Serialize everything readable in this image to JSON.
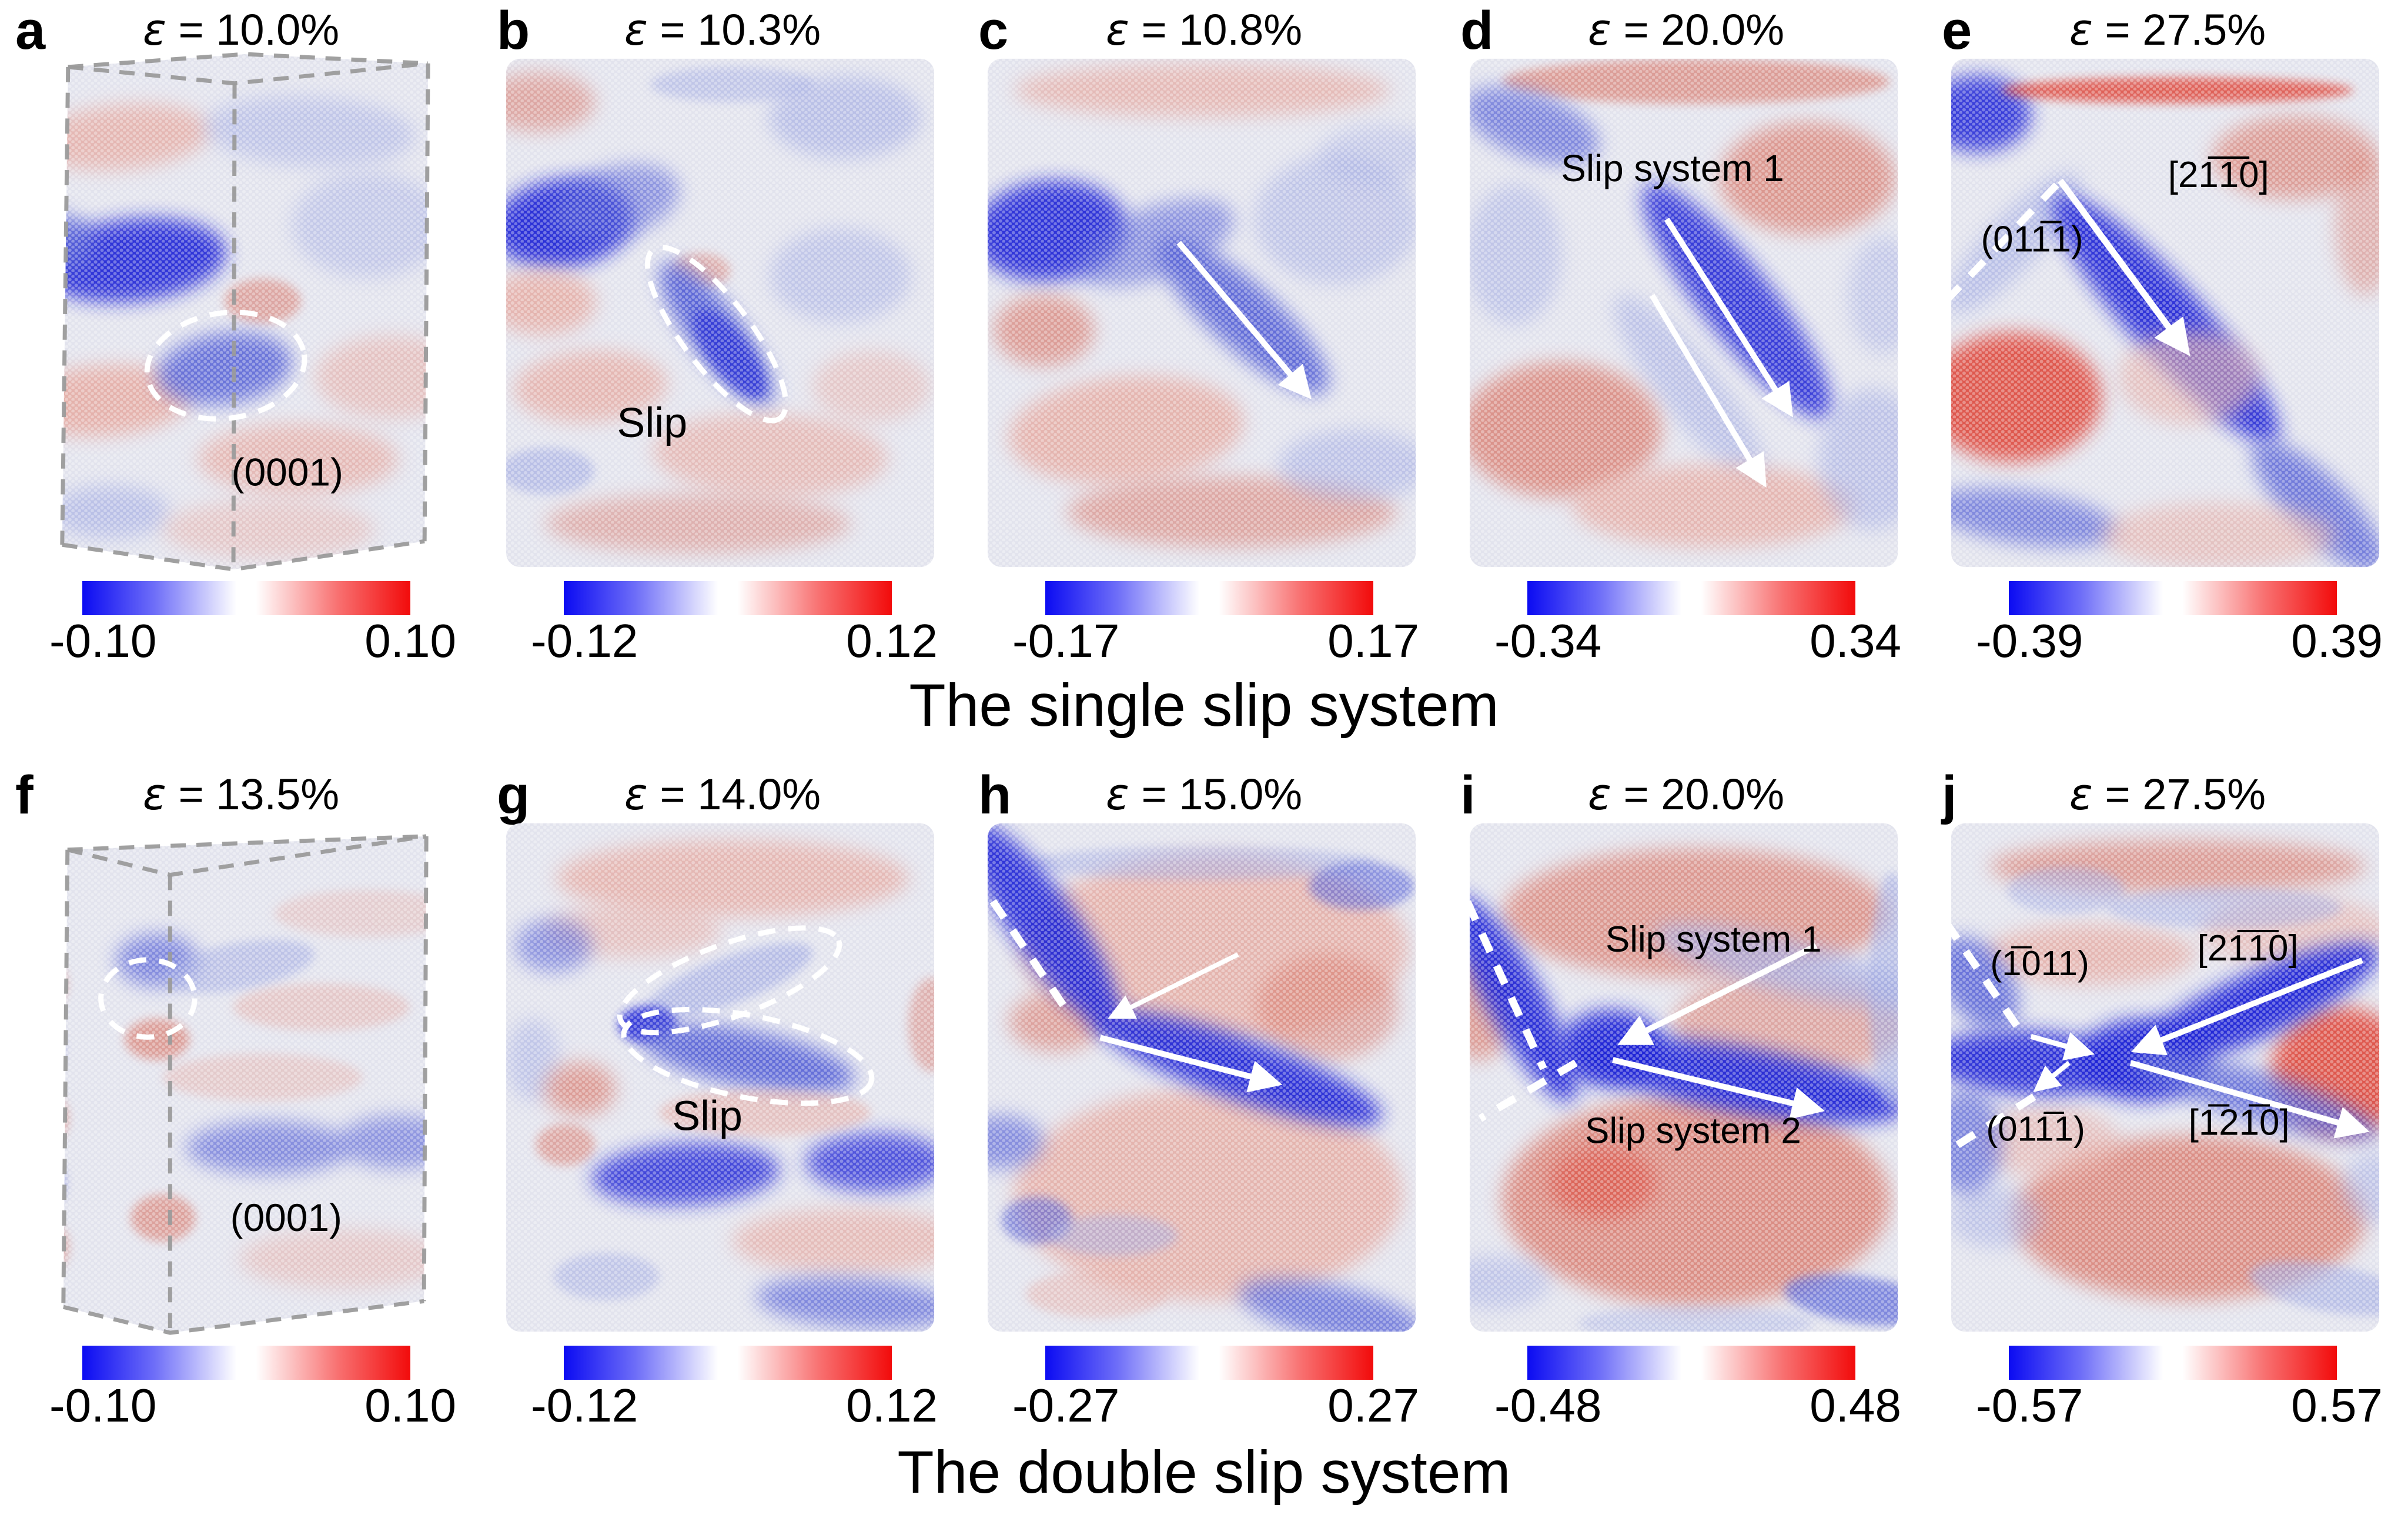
{
  "figure": {
    "epsilon": "ε",
    "captions": {
      "row1": "The single slip system",
      "row2": "The double slip system"
    },
    "colors": {
      "colorbar_blue": "#0b0bf2",
      "colorbar_red": "#f20b0b",
      "strong_blue": "#1b24d6",
      "pale_blue": "#9fa8e2",
      "strong_red": "#de3526",
      "pale_red": "#e5aca4",
      "box_outline": "#9b9b9b",
      "annotation_white": "#ffffff"
    }
  },
  "panels": [
    {
      "letter": "a",
      "strain_text": " = 10.0%",
      "cbar_min": "-0.10",
      "cbar_max": "0.10",
      "labels": {
        "plane": "(0001)"
      }
    },
    {
      "letter": "b",
      "strain_text": " = 10.3%",
      "cbar_min": "-0.12",
      "cbar_max": "0.12",
      "labels": {
        "slip": "Slip"
      }
    },
    {
      "letter": "c",
      "strain_text": " = 10.8%",
      "cbar_min": "-0.17",
      "cbar_max": "0.17",
      "labels": {}
    },
    {
      "letter": "d",
      "strain_text": " = 20.0%",
      "cbar_min": "-0.34",
      "cbar_max": "0.34",
      "labels": {
        "slip1": "Slip system 1"
      }
    },
    {
      "letter": "e",
      "strain_text": " = 27.5%",
      "cbar_min": "-0.39",
      "cbar_max": "0.39",
      "labels": {
        "plane": "(011̅1)",
        "direction": "[21̅1̅0]"
      }
    },
    {
      "letter": "f",
      "strain_text": " = 13.5%",
      "cbar_min": "-0.10",
      "cbar_max": "0.10",
      "labels": {
        "plane": "(0001)"
      }
    },
    {
      "letter": "g",
      "strain_text": " = 14.0%",
      "cbar_min": "-0.12",
      "cbar_max": "0.12",
      "labels": {
        "slip": "Slip"
      }
    },
    {
      "letter": "h",
      "strain_text": " = 15.0%",
      "cbar_min": "-0.27",
      "cbar_max": "0.27",
      "labels": {}
    },
    {
      "letter": "i",
      "strain_text": " = 20.0%",
      "cbar_min": "-0.48",
      "cbar_max": "0.48",
      "labels": {
        "slip1": "Slip system 1",
        "slip2": "Slip system 2"
      }
    },
    {
      "letter": "j",
      "strain_text": " = 27.5%",
      "cbar_min": "-0.57",
      "cbar_max": "0.57",
      "labels": {
        "plane1": "(1̅011)",
        "direction1": "[21̅1̅0]",
        "plane2": "(011̅1)",
        "direction2": "[1̅21̅0]"
      }
    }
  ]
}
